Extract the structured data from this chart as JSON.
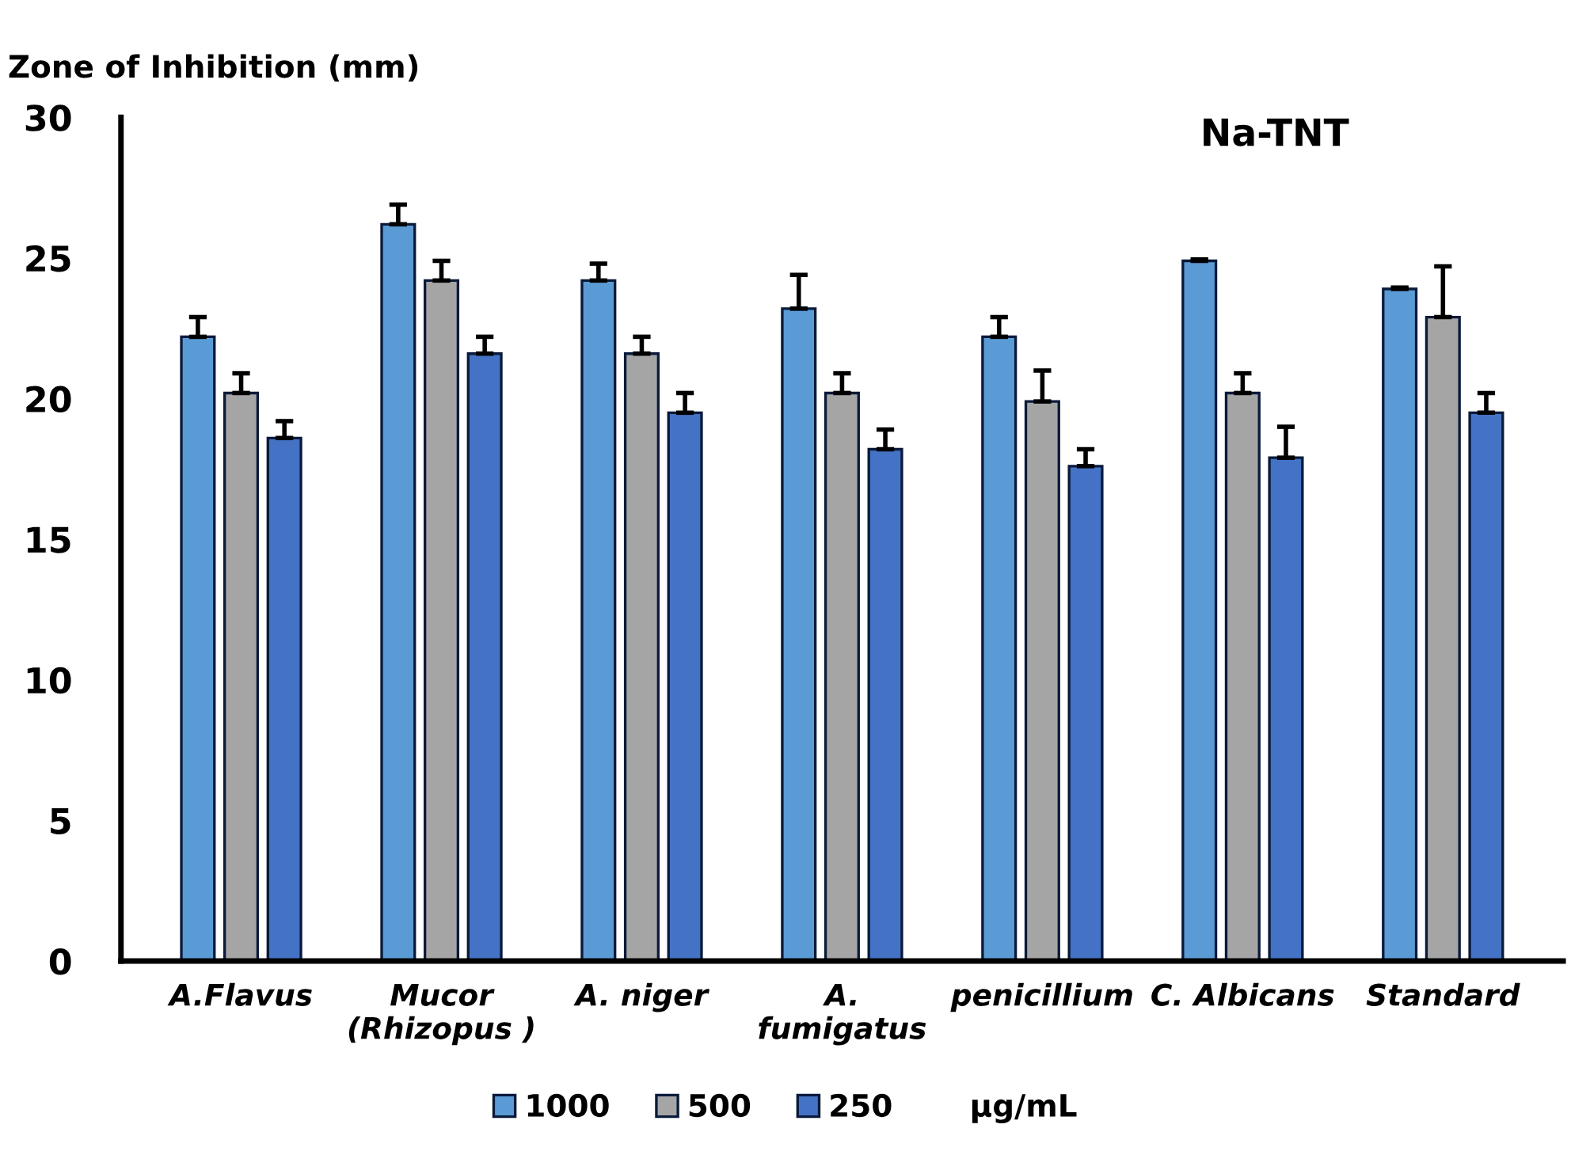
{
  "chart_data": {
    "type": "bar",
    "title": "Na-TNT",
    "ylabel": "Zone of Inhibition (mm)",
    "legend_title": "µg/mL",
    "categories": [
      "A.Flavus",
      "Mucor\n(Rhizopus )",
      "A. niger",
      "A.\nfumigatus",
      "penicillium",
      "C. Albicans",
      "Standard"
    ],
    "series": [
      {
        "name": "1000",
        "color": "#5b9bd5",
        "values": [
          22.2,
          26.2,
          24.2,
          23.2,
          22.2,
          24.9,
          23.9
        ],
        "errors": [
          [
            22.2,
            22.9
          ],
          [
            26.2,
            26.9
          ],
          [
            24.2,
            24.8
          ],
          [
            23.2,
            24.4
          ],
          [
            22.2,
            22.9
          ],
          [
            24.9,
            24.95
          ],
          [
            23.9,
            23.95
          ]
        ]
      },
      {
        "name": "500",
        "color": "#a5a5a5",
        "values": [
          20.2,
          24.2,
          21.6,
          20.2,
          19.9,
          20.2,
          22.9
        ],
        "errors": [
          [
            20.2,
            20.9
          ],
          [
            24.2,
            24.9
          ],
          [
            21.6,
            22.2
          ],
          [
            20.2,
            20.9
          ],
          [
            19.9,
            21.0
          ],
          [
            20.2,
            20.9
          ],
          [
            22.9,
            24.7
          ]
        ]
      },
      {
        "name": "250",
        "color": "#4472c4",
        "values": [
          18.6,
          21.6,
          19.5,
          18.2,
          17.6,
          17.9,
          19.5
        ],
        "errors": [
          [
            18.6,
            19.2
          ],
          [
            21.6,
            22.2
          ],
          [
            19.5,
            20.2
          ],
          [
            18.2,
            18.9
          ],
          [
            17.6,
            18.2
          ],
          [
            17.9,
            19.0
          ],
          [
            19.5,
            20.2
          ]
        ]
      }
    ],
    "ylim": [
      0,
      30
    ],
    "yticks": [
      0,
      5,
      10,
      15,
      20,
      25,
      30
    ],
    "grid": false,
    "legend": "bottom"
  }
}
